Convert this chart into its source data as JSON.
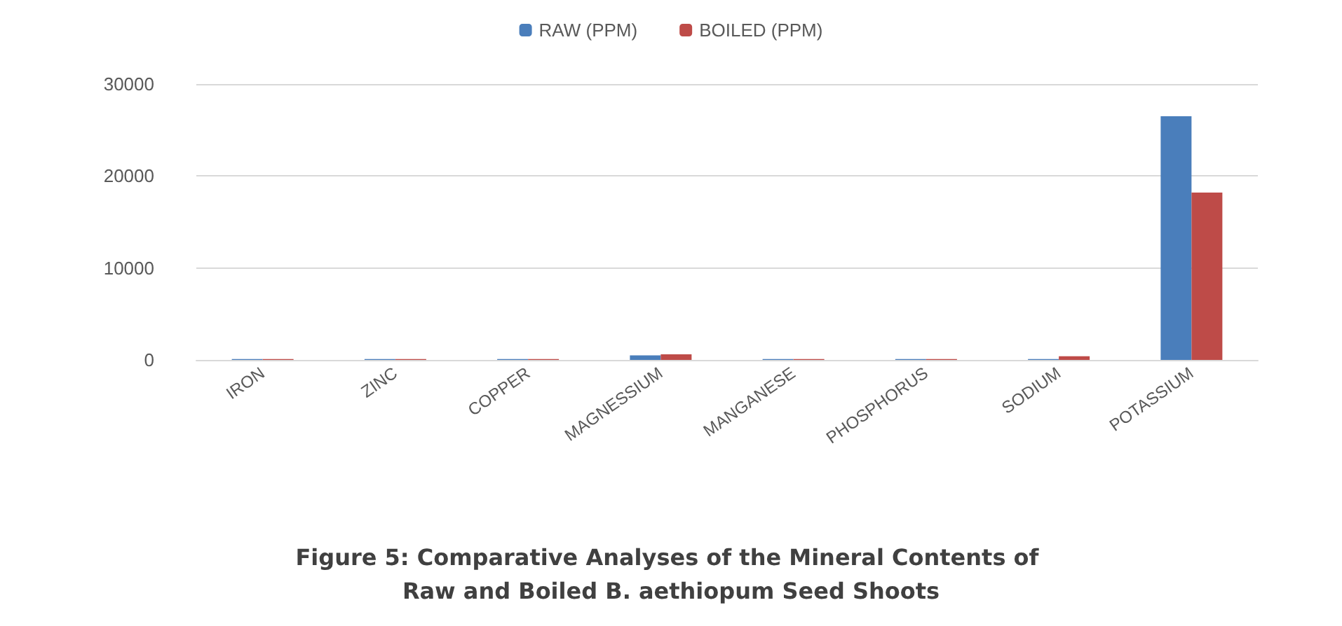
{
  "chart_data": {
    "type": "bar",
    "title": "Figure 5: Comparative Analyses of the Mineral Contents of Raw and Boiled B. aethiopum Seed Shoots",
    "categories": [
      "IRON",
      "ZINC",
      "COPPER",
      "MAGNESSIUM",
      "MANGANESE",
      "PHOSPHORUS",
      "SODIUM",
      "POTASSIUM"
    ],
    "series": [
      {
        "name": "RAW (PPM)",
        "color": "#4a7ebb",
        "values": [
          100,
          100,
          100,
          500,
          100,
          100,
          100,
          26500
        ]
      },
      {
        "name": "BOILED (PPM)",
        "color": "#be4b48",
        "values": [
          100,
          100,
          100,
          600,
          100,
          100,
          400,
          18200
        ]
      }
    ],
    "ylim": [
      0,
      30000
    ],
    "yticks": [
      0,
      10000,
      20000,
      30000
    ],
    "grid": "y",
    "legend": "top"
  }
}
